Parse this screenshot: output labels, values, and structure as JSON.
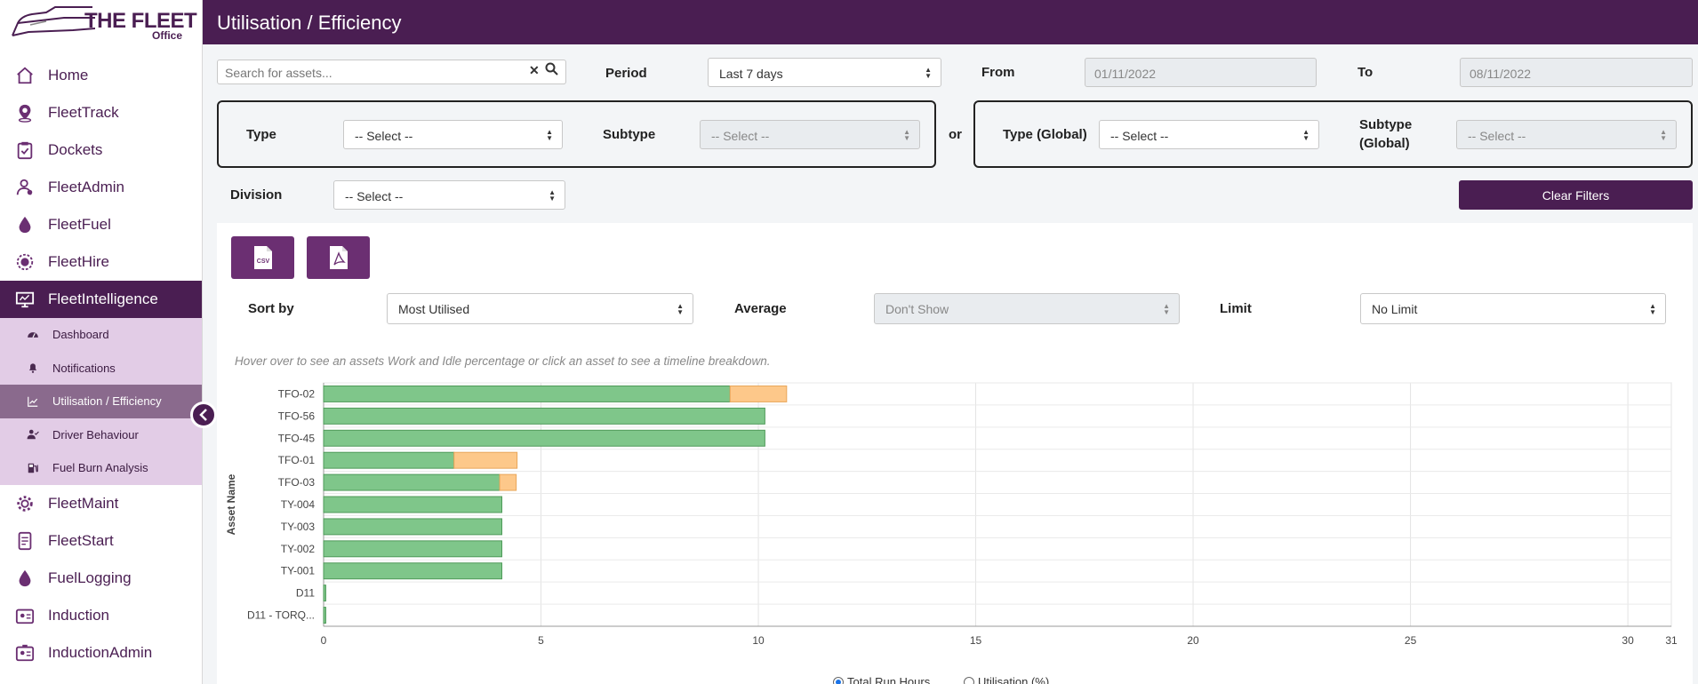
{
  "app": {
    "logo_text": "THE FLEET",
    "logo_sub": "Office"
  },
  "header": {
    "title": "Utilisation / Efficiency"
  },
  "sidebar": {
    "items": [
      {
        "label": "Home",
        "icon": "home-icon"
      },
      {
        "label": "FleetTrack",
        "icon": "location-pin-icon"
      },
      {
        "label": "Dockets",
        "icon": "clipboard-check-icon"
      },
      {
        "label": "FleetAdmin",
        "icon": "user-admin-icon"
      },
      {
        "label": "FleetFuel",
        "icon": "fuel-drop-icon"
      },
      {
        "label": "FleetHire",
        "icon": "hire-badge-icon"
      },
      {
        "label": "FleetIntelligence",
        "icon": "monitor-icon",
        "active": true
      }
    ],
    "subitems": [
      {
        "label": "Dashboard",
        "icon": "gauge-icon"
      },
      {
        "label": "Notifications",
        "icon": "bell-icon"
      },
      {
        "label": "Utilisation / Efficiency",
        "icon": "line-chart-icon",
        "active": true
      },
      {
        "label": "Driver Behaviour",
        "icon": "user-check-icon"
      },
      {
        "label": "Fuel Burn Analysis",
        "icon": "fuel-pump-icon"
      }
    ],
    "items_after": [
      {
        "label": "FleetMaint",
        "icon": "gear-icon"
      },
      {
        "label": "FleetStart",
        "icon": "phone-checklist-icon"
      },
      {
        "label": "FuelLogging",
        "icon": "fuel-drop-icon"
      },
      {
        "label": "Induction",
        "icon": "id-card-icon"
      },
      {
        "label": "InductionAdmin",
        "icon": "id-card-admin-icon"
      }
    ]
  },
  "filters": {
    "search_placeholder": "Search for assets...",
    "period_label": "Period",
    "period_value": "Last 7 days",
    "from_label": "From",
    "from_value": "01/11/2022",
    "to_label": "To",
    "to_value": "08/11/2022",
    "type_label": "Type",
    "type_value": "-- Select --",
    "subtype_label": "Subtype",
    "subtype_value": "-- Select --",
    "or_label": "or",
    "type_global_label": "Type (Global)",
    "type_global_value": "-- Select --",
    "subtype_global_label_1": "Subtype",
    "subtype_global_label_2": "(Global)",
    "subtype_global_value": "-- Select --",
    "division_label": "Division",
    "division_value": "-- Select --",
    "clear_label": "Clear Filters"
  },
  "controls": {
    "csv_icon_text": "CSV",
    "sort_label": "Sort by",
    "sort_value": "Most Utilised",
    "average_label": "Average",
    "average_value": "Don't Show",
    "limit_label": "Limit",
    "limit_value": "No Limit",
    "hint": "Hover over to see an assets Work and Idle percentage or click an asset to see a timeline breakdown."
  },
  "radios": {
    "total_run_hours": "Total Run Hours",
    "utilisation": "Utilisation (%)",
    "selected": "total_run_hours"
  },
  "colors": {
    "brand": "#4a1e52",
    "work": "#7fc68a",
    "idle": "#fdc88a"
  },
  "chart_data": {
    "type": "bar",
    "orientation": "horizontal",
    "stacked": true,
    "ylabel": "Asset Name",
    "xlabel": "",
    "categories": [
      "TFO-02",
      "TFO-56",
      "TFO-45",
      "TFO-01",
      "TFO-03",
      "TY-004",
      "TY-003",
      "TY-002",
      "TY-001",
      "D11",
      "D11 - TORQ..."
    ],
    "series": [
      {
        "values": [
          9.35,
          10.15,
          10.15,
          3.0,
          4.05,
          4.1,
          4.1,
          4.1,
          4.1,
          0.05,
          0.05
        ]
      },
      {
        "values": [
          1.3,
          0,
          0,
          1.45,
          0.38,
          0,
          0,
          0,
          0,
          0,
          0
        ]
      }
    ],
    "xlim": [
      0,
      31
    ],
    "xticks": [
      0,
      5,
      10,
      15,
      20,
      25,
      30,
      31
    ],
    "grid": true
  }
}
